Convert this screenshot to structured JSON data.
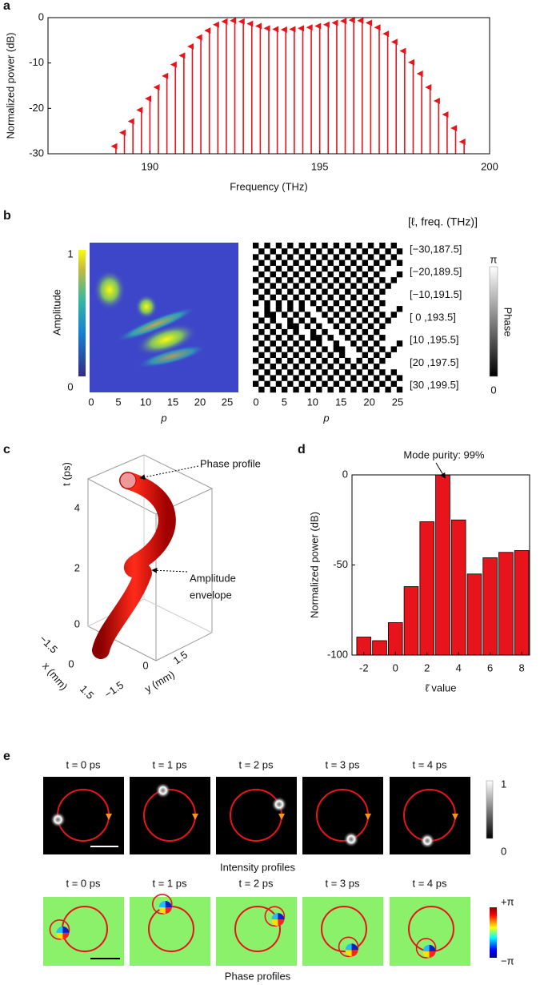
{
  "chart_data": [
    {
      "type": "stem",
      "label": "a",
      "xlabel": "Frequency (THz)",
      "ylabel": "Normalized power (dB)",
      "color": "#e8141b",
      "x": [
        189,
        189.25,
        189.5,
        189.75,
        190,
        190.25,
        190.5,
        190.75,
        191,
        191.25,
        191.5,
        191.75,
        192,
        192.25,
        192.5,
        192.75,
        193,
        193.25,
        193.5,
        193.75,
        194,
        194.25,
        194.5,
        194.75,
        195,
        195.25,
        195.5,
        195.75,
        196,
        196.25,
        196.5,
        196.75,
        197,
        197.25,
        197.5,
        197.75,
        198,
        198.25,
        198.5,
        198.75,
        199,
        199.25
      ],
      "values": [
        -28,
        -25,
        -22.5,
        -20,
        -17.5,
        -15,
        -12.5,
        -10,
        -8,
        -6,
        -4,
        -2.5,
        -1.2,
        -0.5,
        -0.3,
        -0.5,
        -1,
        -1.5,
        -2,
        -2.2,
        -2.3,
        -2.2,
        -2,
        -1.8,
        -1.5,
        -1.2,
        -0.8,
        -0.4,
        -0.2,
        -0.3,
        -0.8,
        -1.8,
        -3.2,
        -5,
        -7,
        -9.5,
        -12,
        -15,
        -18,
        -21,
        -24,
        -27
      ],
      "xlim": [
        187,
        200
      ],
      "xticks": [
        190,
        195,
        200
      ],
      "ylim": [
        -30,
        0
      ],
      "yticks": [
        -30,
        -20,
        -10,
        0
      ]
    },
    {
      "type": "bar",
      "label": "d",
      "xlabel": "ℓ̄ value",
      "ylabel": "Normalized power (dB)",
      "color": "#e8141b",
      "x": [
        -2,
        -1,
        0,
        1,
        2,
        3,
        4,
        5,
        6,
        7,
        8
      ],
      "values": [
        -90,
        -92,
        -82,
        -62,
        -26,
        0,
        -25,
        -55,
        -46,
        -43,
        -42
      ],
      "xlim": [
        -2.75,
        8.5
      ],
      "xticks": [
        -2,
        0,
        2,
        4,
        6,
        8
      ],
      "ylim": [
        -100,
        0
      ],
      "yticks": [
        -100,
        -50,
        0
      ],
      "annotation": "Mode purity: 99%"
    }
  ],
  "panel_b": {
    "label": "b",
    "header": "[ℓ, freq. (THz)]",
    "row_labels": [
      "[−30,187.5]",
      "[−20,189.5]",
      "[−10,191.5]",
      "[  0 ,193.5]",
      "[10 ,195.5]",
      "[20 ,197.5]",
      "[30 ,199.5]"
    ],
    "xticks": [
      "0",
      "5",
      "10",
      "15",
      "20",
      "25"
    ],
    "xlabel": "p",
    "amplitude_label": "Amplitude",
    "amplitude_ticks": [
      "1",
      "0"
    ],
    "phase_label": "Phase",
    "phase_ticks": [
      "π",
      "0"
    ]
  },
  "panel_c": {
    "label": "c",
    "t_label": "t (ps)",
    "t_ticks": [
      "4",
      "2",
      "0"
    ],
    "x_label": "x (mm)",
    "x_ticks": [
      "−1.5",
      "0",
      "1.5"
    ],
    "y_label": "y (mm)",
    "y_ticks": [
      "−1.5",
      "0",
      "1.5"
    ],
    "phase_annotation": "Phase profile",
    "amplitude_annotation": [
      "Amplitude",
      "envelope"
    ]
  },
  "panel_e": {
    "label": "e",
    "intensity_titles": [
      "t = 0 ps",
      "t = 1 ps",
      "t = 2 ps",
      "t = 3 ps",
      "t = 4 ps"
    ],
    "intensity_caption": "Intensity profiles",
    "intensity_ticks": [
      "1",
      "0"
    ],
    "phase_titles": [
      "t = 0 ps",
      "t = 1 ps",
      "t = 2 ps",
      "t = 3 ps",
      "t = 4 ps"
    ],
    "phase_caption": "Phase profiles",
    "phase_ticks": [
      "+π",
      "−π"
    ]
  }
}
